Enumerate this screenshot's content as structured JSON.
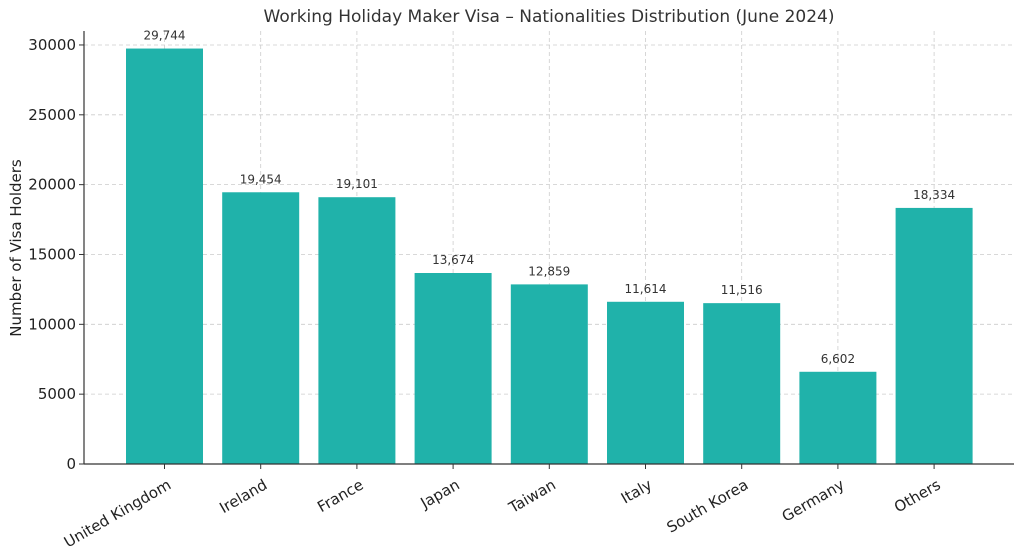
{
  "chart_data": {
    "type": "bar",
    "title": "Working Holiday Maker Visa – Nationalities Distribution (June 2024)",
    "xlabel": "",
    "ylabel": "Number of Visa Holders",
    "categories": [
      "United Kingdom",
      "Ireland",
      "France",
      "Japan",
      "Taiwan",
      "Italy",
      "South Korea",
      "Germany",
      "Others"
    ],
    "values": [
      29744,
      19454,
      19101,
      13674,
      12859,
      11614,
      11516,
      6602,
      18334
    ],
    "data_labels": [
      "29,744",
      "19,454",
      "19,101",
      "13,674",
      "12,859",
      "11,614",
      "11,516",
      "6,602",
      "18,334"
    ],
    "ylim": [
      0,
      31000
    ],
    "yticks": [
      0,
      5000,
      10000,
      15000,
      20000,
      25000,
      30000
    ],
    "grid": true,
    "bar_color": "#20b2aa"
  }
}
